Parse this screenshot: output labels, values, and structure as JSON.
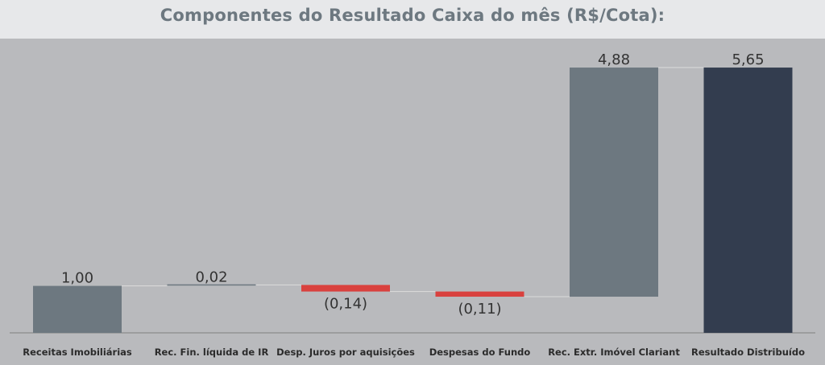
{
  "header": {
    "title": "Componentes do Resultado Caixa do mês (R$/Cota):"
  },
  "chart_data": {
    "type": "waterfall",
    "title": "Componentes do Resultado Caixa do mês (R$/Cota):",
    "categories": [
      "Receitas Imobiliárias",
      "Rec. Fin. líquida de IR",
      "Desp. Juros por aquisições",
      "Despesas do Fundo",
      "Rec. Extr. Imóvel Clariant",
      "Resultado Distribuído"
    ],
    "values": [
      1.0,
      0.02,
      -0.14,
      -0.11,
      4.88,
      5.65
    ],
    "labels": [
      "1,00",
      "0,02",
      "(0,14)",
      "(0,11)",
      "4,88",
      "5,65"
    ],
    "kinds": [
      "increase",
      "increase",
      "decrease",
      "decrease",
      "increase",
      "total"
    ],
    "colors": {
      "increase": "#6d7880",
      "decrease": "#d9413e",
      "total": "#333d4f",
      "connector": "#dcdcdc",
      "label": "#333333",
      "axis": "#808080"
    },
    "ylim": [
      0,
      6.0
    ],
    "grid": false,
    "legend": "none"
  }
}
